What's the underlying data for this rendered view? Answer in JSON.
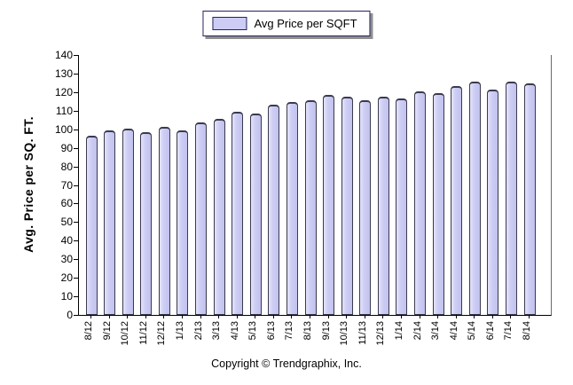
{
  "chart_data": {
    "type": "bar",
    "legend_label": "Avg Price per SQFT",
    "legend_position": "top-center",
    "ylabel": "Avg. Price per SQ. FT.",
    "xlabel": "",
    "ylim": [
      0,
      140
    ],
    "ytick_step": 10,
    "grid": false,
    "bar_fill_color": "#ccccf5",
    "bar_border_color": "#3a3a4e",
    "categories": [
      "8/12",
      "9/12",
      "10/12",
      "11/12",
      "12/12",
      "1/13",
      "2/13",
      "3/13",
      "4/13",
      "5/13",
      "6/13",
      "7/13",
      "8/13",
      "9/13",
      "10/13",
      "11/13",
      "12/13",
      "1/14",
      "2/14",
      "3/14",
      "4/14",
      "5/14",
      "6/14",
      "7/14",
      "8/14"
    ],
    "values": [
      96,
      99,
      100,
      98,
      101,
      99,
      103,
      105,
      109,
      108,
      113,
      114,
      115,
      118,
      117,
      115,
      117,
      116,
      120,
      119,
      123,
      125,
      121,
      125,
      124
    ]
  },
  "footer": {
    "copyright": "Copyright © Trendgraphix, Inc."
  }
}
